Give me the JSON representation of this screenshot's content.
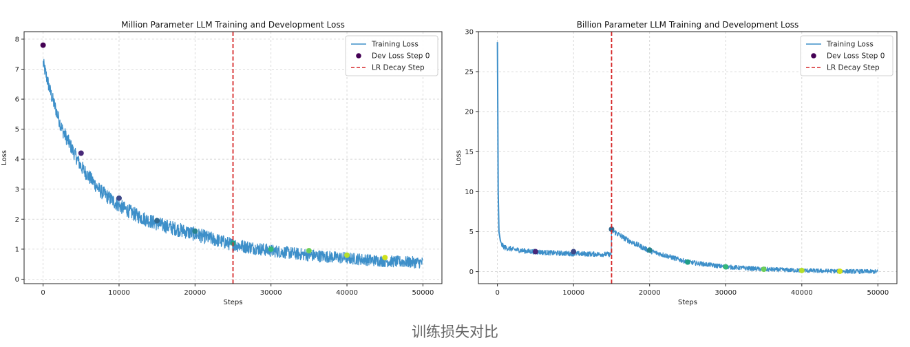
{
  "caption": "训练损失对比",
  "chart_data": [
    {
      "type": "line",
      "title": "Million Parameter LLM Training and Development Loss",
      "xlabel": "Steps",
      "ylabel": "Loss",
      "xlim": [
        -2500,
        52500
      ],
      "ylim": [
        -0.15,
        8.25
      ],
      "xticks": [
        0,
        10000,
        20000,
        30000,
        40000,
        50000
      ],
      "yticks": [
        0,
        1,
        2,
        3,
        4,
        5,
        6,
        7,
        8
      ],
      "grid": true,
      "legend": {
        "position": "top-right",
        "entries": [
          "Training Loss",
          "Dev Loss Step 0",
          "LR Decay Step"
        ]
      },
      "series": [
        {
          "name": "Training Loss",
          "style": "line",
          "color": "#3d8fc9",
          "x": [
            0,
            1000,
            2500,
            5000,
            7500,
            10000,
            12500,
            15000,
            20000,
            25000,
            30000,
            35000,
            40000,
            45000,
            50000
          ],
          "y": [
            7.2,
            6.2,
            5.0,
            3.75,
            2.95,
            2.45,
            2.1,
            1.85,
            1.5,
            1.15,
            0.95,
            0.8,
            0.7,
            0.6,
            0.55
          ]
        },
        {
          "name": "Dev Loss Step 0",
          "style": "scatter",
          "x": [
            0,
            5000,
            10000,
            15000,
            20000,
            25000,
            30000,
            35000,
            40000,
            45000
          ],
          "y": [
            7.8,
            4.2,
            2.7,
            1.95,
            1.6,
            1.2,
            1.0,
            0.95,
            0.8,
            0.72
          ],
          "colors": [
            "#440154",
            "#482878",
            "#3e4989",
            "#31688e",
            "#26828e",
            "#1f9e89",
            "#35b779",
            "#6ece58",
            "#b5de2b",
            "#d0e11c"
          ]
        },
        {
          "name": "LR Decay Step",
          "style": "vline",
          "color": "#d62728",
          "x": 25000
        }
      ]
    },
    {
      "type": "line",
      "title": "Billion Parameter LLM Training and Development Loss",
      "xlabel": "Steps",
      "ylabel": "Loss",
      "xlim": [
        -2500,
        52500
      ],
      "ylim": [
        -1.5,
        30.0
      ],
      "xticks": [
        0,
        10000,
        20000,
        30000,
        40000,
        50000
      ],
      "yticks": [
        0,
        5,
        10,
        15,
        20,
        25,
        30
      ],
      "grid": true,
      "legend": {
        "position": "top-right",
        "entries": [
          "Training Loss",
          "Dev Loss Step 0",
          "LR Decay Step"
        ]
      },
      "series": [
        {
          "name": "Training Loss",
          "style": "line",
          "color": "#3d8fc9",
          "x": [
            0,
            50,
            200,
            500,
            1000,
            2000,
            4000,
            7000,
            10000,
            14950,
            15000,
            17000,
            20000,
            25000,
            30000,
            35000,
            40000,
            45000,
            50000
          ],
          "y": [
            28.7,
            9.0,
            4.5,
            3.4,
            3.0,
            2.8,
            2.55,
            2.35,
            2.25,
            2.15,
            5.2,
            4.0,
            2.6,
            1.2,
            0.6,
            0.3,
            0.15,
            0.05,
            0.0
          ],
          "spike_x": [
            0,
            50,
            100,
            200,
            400
          ],
          "spike_y": [
            28.7,
            20.0,
            10.0,
            5.0,
            3.8
          ]
        },
        {
          "name": "Dev Loss Step 0",
          "style": "scatter",
          "x": [
            5000,
            10000,
            15000,
            20000,
            25000,
            30000,
            35000,
            40000,
            45000
          ],
          "y": [
            2.5,
            2.5,
            5.3,
            2.7,
            1.2,
            0.6,
            0.3,
            0.15,
            0.05
          ],
          "colors": [
            "#482878",
            "#3e4989",
            "#31688e",
            "#26828e",
            "#1f9e89",
            "#35b779",
            "#6ece58",
            "#b5de2b",
            "#d0e11c"
          ]
        },
        {
          "name": "LR Decay Step",
          "style": "vline",
          "color": "#d62728",
          "x": 15000
        }
      ]
    }
  ]
}
